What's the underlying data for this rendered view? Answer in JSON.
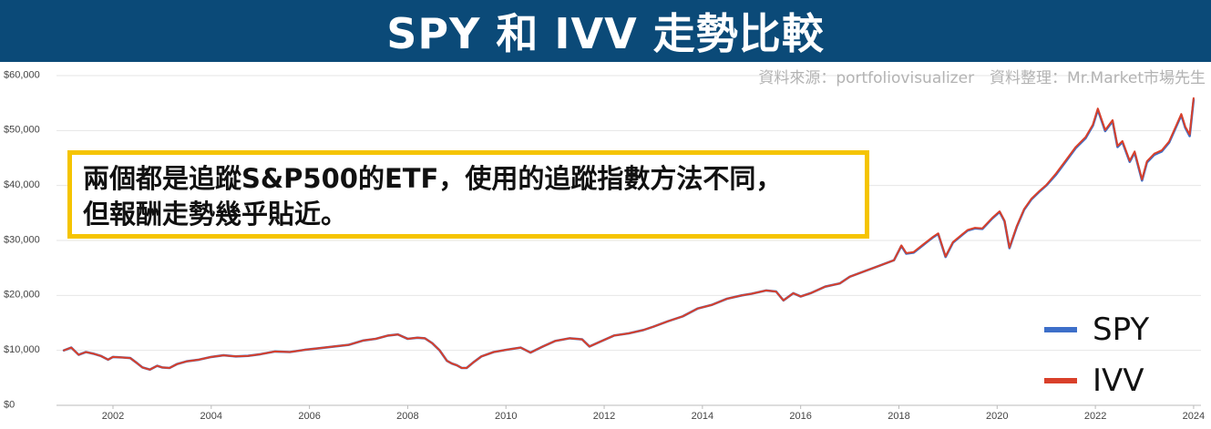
{
  "banner": {
    "title": "SPY 和 IVV 走勢比較"
  },
  "source_note": "資料來源：portfoliovisualizer　資料整理：Mr.Market市場先生",
  "callout": {
    "line1": "兩個都是追蹤S&P500的ETF，使用的追蹤指數方法不同，",
    "line2": "但報酬走勢幾乎貼近。"
  },
  "colors": {
    "banner": "#0b4a78",
    "spy": "#3d6fc9",
    "ivv": "#d9402a",
    "callout_border": "#f5c400"
  },
  "chart_data": {
    "type": "line",
    "title": "",
    "xlabel": "",
    "ylabel": "",
    "xlim": [
      2000.85,
      2024.15
    ],
    "ylim": [
      0,
      60000
    ],
    "x_ticks": [
      2002,
      2004,
      2006,
      2008,
      2010,
      2012,
      2014,
      2016,
      2018,
      2020,
      2022,
      2024
    ],
    "y_ticks": [
      0,
      10000,
      20000,
      30000,
      40000,
      50000,
      60000
    ],
    "y_tick_labels": [
      "$0",
      "$10,000",
      "$20,000",
      "$30,000",
      "$40,000",
      "$50,000",
      "$60,000"
    ],
    "grid": true,
    "legend": "bottom-right",
    "x": [
      2001.0,
      2001.15,
      2001.3,
      2001.45,
      2001.6,
      2001.75,
      2001.9,
      2002.0,
      2002.2,
      2002.35,
      2002.5,
      2002.6,
      2002.75,
      2002.9,
      2003.0,
      2003.15,
      2003.3,
      2003.5,
      2003.75,
      2004.0,
      2004.25,
      2004.5,
      2004.75,
      2005.0,
      2005.3,
      2005.6,
      2005.9,
      2006.2,
      2006.5,
      2006.8,
      2007.1,
      2007.35,
      2007.6,
      2007.8,
      2008.0,
      2008.2,
      2008.35,
      2008.5,
      2008.65,
      2008.8,
      2008.9,
      2009.0,
      2009.1,
      2009.2,
      2009.35,
      2009.5,
      2009.75,
      2010.0,
      2010.3,
      2010.5,
      2010.75,
      2011.0,
      2011.3,
      2011.55,
      2011.7,
      2011.9,
      2012.2,
      2012.5,
      2012.8,
      2013.0,
      2013.3,
      2013.6,
      2013.9,
      2014.2,
      2014.5,
      2014.8,
      2015.0,
      2015.3,
      2015.5,
      2015.65,
      2015.85,
      2016.0,
      2016.2,
      2016.5,
      2016.8,
      2017.0,
      2017.3,
      2017.6,
      2017.9,
      2018.05,
      2018.15,
      2018.3,
      2018.5,
      2018.7,
      2018.8,
      2018.95,
      2019.1,
      2019.3,
      2019.4,
      2019.55,
      2019.7,
      2019.9,
      2020.05,
      2020.15,
      2020.25,
      2020.4,
      2020.55,
      2020.7,
      2020.85,
      2021.0,
      2021.2,
      2021.4,
      2021.6,
      2021.8,
      2021.95,
      2022.05,
      2022.2,
      2022.35,
      2022.45,
      2022.55,
      2022.7,
      2022.8,
      2022.95,
      2023.05,
      2023.2,
      2023.35,
      2023.5,
      2023.6,
      2023.75,
      2023.83,
      2023.92,
      2024.0
    ],
    "series": [
      {
        "name": "SPY",
        "values": [
          10000,
          10500,
          9200,
          9700,
          9400,
          9000,
          8300,
          8800,
          8700,
          8600,
          7600,
          6900,
          6500,
          7200,
          6900,
          6800,
          7500,
          8000,
          8300,
          8800,
          9100,
          8900,
          9000,
          9300,
          9800,
          9700,
          10100,
          10400,
          10700,
          11000,
          11800,
          12100,
          12700,
          12900,
          12100,
          12300,
          12200,
          11300,
          10000,
          8100,
          7600,
          7300,
          6800,
          6800,
          7900,
          8900,
          9700,
          10100,
          10500,
          9600,
          10700,
          11700,
          12200,
          12000,
          10700,
          11500,
          12700,
          13100,
          13700,
          14300,
          15300,
          16200,
          17600,
          18300,
          19400,
          20000,
          20300,
          20900,
          20700,
          19100,
          20400,
          19800,
          20400,
          21600,
          22200,
          23400,
          24400,
          25400,
          26400,
          29000,
          27600,
          27800,
          29200,
          30600,
          31200,
          27000,
          29600,
          31100,
          31800,
          32200,
          32100,
          34000,
          35200,
          33500,
          28600,
          32500,
          35600,
          37500,
          38800,
          40000,
          42000,
          44400,
          46800,
          48600,
          50900,
          53800,
          49900,
          51700,
          47000,
          47900,
          44300,
          46000,
          40900,
          44200,
          45600,
          46200,
          47800,
          49800,
          52800,
          50500,
          49000,
          55600
        ]
      },
      {
        "name": "IVV",
        "values": [
          10000,
          10500,
          9200,
          9700,
          9400,
          9000,
          8300,
          8800,
          8700,
          8600,
          7600,
          6900,
          6500,
          7200,
          6900,
          6800,
          7500,
          8000,
          8300,
          8800,
          9100,
          8900,
          9000,
          9300,
          9800,
          9700,
          10100,
          10400,
          10700,
          11000,
          11800,
          12100,
          12700,
          12900,
          12100,
          12300,
          12200,
          11300,
          10000,
          8100,
          7600,
          7300,
          6800,
          6800,
          7900,
          8900,
          9700,
          10100,
          10500,
          9600,
          10700,
          11700,
          12200,
          12000,
          10700,
          11500,
          12700,
          13100,
          13700,
          14300,
          15300,
          16200,
          17600,
          18300,
          19400,
          20000,
          20300,
          20900,
          20700,
          19100,
          20400,
          19800,
          20400,
          21600,
          22200,
          23400,
          24400,
          25400,
          26400,
          29100,
          27700,
          27900,
          29300,
          30700,
          31300,
          27100,
          29700,
          31200,
          31900,
          32300,
          32200,
          34100,
          35300,
          33600,
          28700,
          32600,
          35700,
          37600,
          38900,
          40100,
          42200,
          44600,
          47000,
          48800,
          51100,
          54000,
          50100,
          51900,
          47200,
          48100,
          44500,
          46200,
          41100,
          44400,
          45800,
          46400,
          48000,
          50000,
          53000,
          50700,
          49300,
          55900
        ]
      }
    ]
  }
}
